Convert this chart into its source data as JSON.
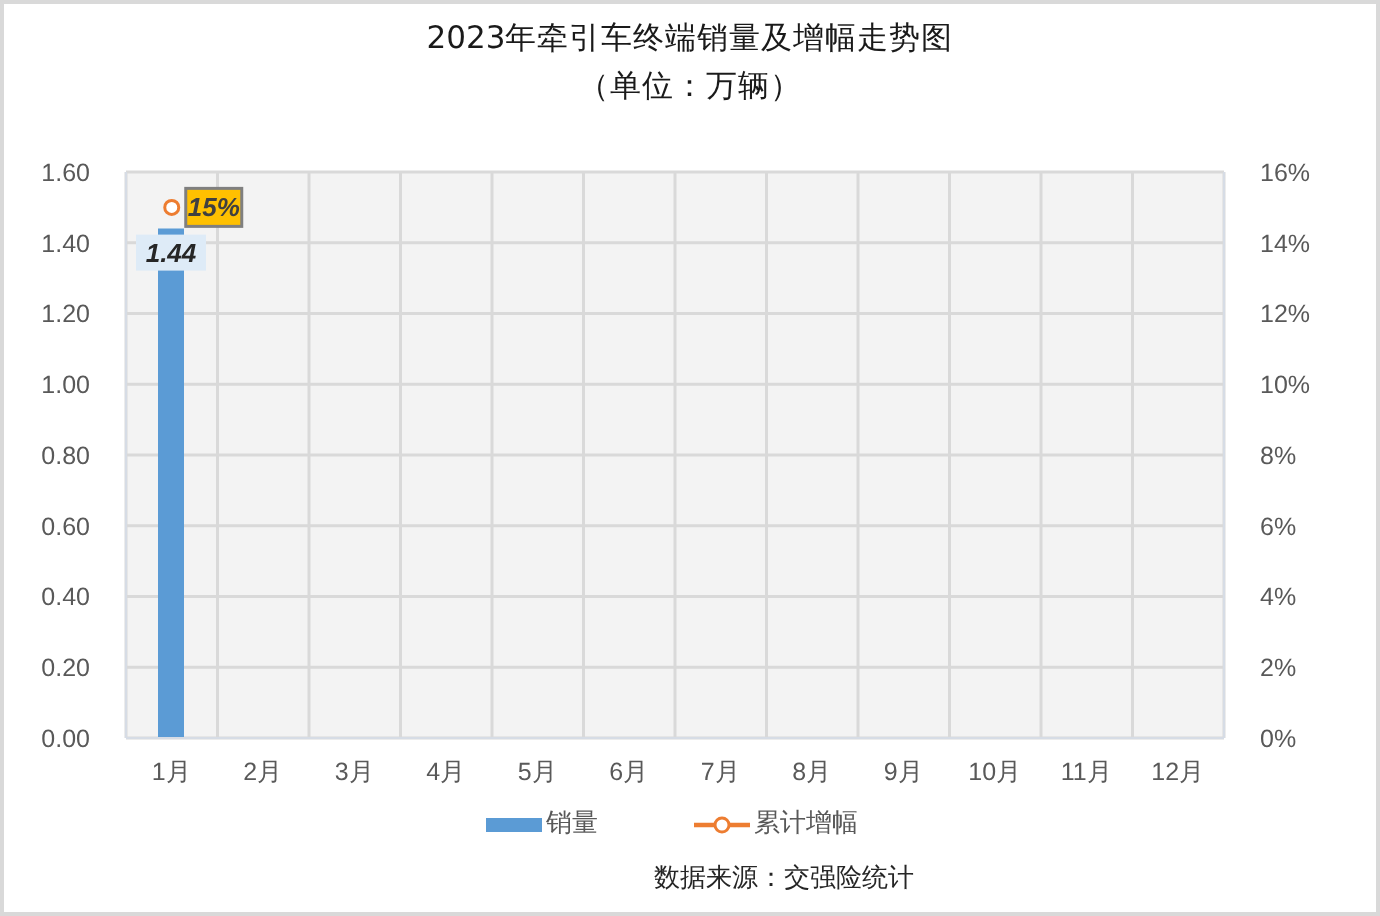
{
  "chart_data": {
    "type": "bar",
    "title": "2023年牵引车终端销量及增幅走势图",
    "subtitle": "（单位：万辆）",
    "annotations": [
      "数据来源：交强险统计"
    ],
    "categories": [
      "1月",
      "2月",
      "3月",
      "4月",
      "5月",
      "6月",
      "7月",
      "8月",
      "9月",
      "10月",
      "11月",
      "12月"
    ],
    "series": [
      {
        "name": "销量",
        "color": "#5b9bd5",
        "values": [
          1.44,
          null,
          null,
          null,
          null,
          null,
          null,
          null,
          null,
          null,
          null,
          null
        ],
        "value_labels": [
          "1.44",
          null,
          null,
          null,
          null,
          null,
          null,
          null,
          null,
          null,
          null,
          null
        ]
      },
      {
        "name": "累计增幅",
        "type": "line",
        "axis": "y2",
        "color": "#ed7d31",
        "values": [
          15,
          null,
          null,
          null,
          null,
          null,
          null,
          null,
          null,
          null,
          null,
          null
        ],
        "value_labels": [
          "15%",
          null,
          null,
          null,
          null,
          null,
          null,
          null,
          null,
          null,
          null,
          null
        ]
      }
    ],
    "ylim": [
      0,
      1.6
    ],
    "yticks": [
      {
        "value": 0,
        "label": "0.00"
      },
      {
        "value": 0.2,
        "label": "0.20"
      },
      {
        "value": 0.4,
        "label": "0.40"
      },
      {
        "value": 0.6,
        "label": "0.60"
      },
      {
        "value": 0.8,
        "label": "0.80"
      },
      {
        "value": 1,
        "label": "1.00"
      },
      {
        "value": 1.2,
        "label": "1.20"
      },
      {
        "value": 1.4,
        "label": "1.40"
      },
      {
        "value": 1.6,
        "label": "1.60"
      }
    ],
    "y2lim": [
      0,
      16
    ],
    "y2ticks": [
      {
        "value": 0,
        "label": "0%"
      },
      {
        "value": 2,
        "label": "2%"
      },
      {
        "value": 4,
        "label": "4%"
      },
      {
        "value": 6,
        "label": "6%"
      },
      {
        "value": 8,
        "label": "8%"
      },
      {
        "value": 10,
        "label": "10%"
      },
      {
        "value": 12,
        "label": "12%"
      },
      {
        "value": 14,
        "label": "14%"
      },
      {
        "value": 16,
        "label": "16%"
      }
    ],
    "grid": true,
    "legend": "bottom",
    "marker": "circle"
  }
}
